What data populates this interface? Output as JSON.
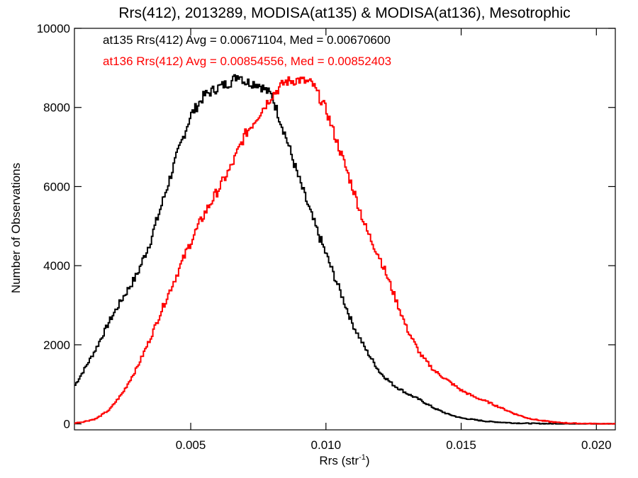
{
  "chart_data": {
    "type": "line",
    "title": "Rrs(412), 2013289, MODISA(at135) & MODISA(at136), Mesotrophic",
    "xlabel": "Rrs (str",
    "xlabel_sup": "-1",
    "xlabel_end": ")",
    "ylabel": "Number of Observations",
    "xlim": [
      0.0007,
      0.0207
    ],
    "ylim": [
      -150,
      10000
    ],
    "xticks": [
      0.005,
      0.01,
      0.015,
      0.02
    ],
    "xtick_labels": [
      "0.005",
      "0.010",
      "0.015",
      "0.020"
    ],
    "yticks": [
      0,
      2000,
      4000,
      6000,
      8000,
      10000
    ],
    "ytick_labels": [
      "0",
      "2000",
      "4000",
      "6000",
      "8000",
      "10000"
    ],
    "step": "histogram",
    "annotations": [
      {
        "text": "at135 Rrs(412) Avg = 0.00671104, Med = 0.00670600",
        "color": "#000000"
      },
      {
        "text": "at136 Rrs(412) Avg = 0.00854556, Med = 0.00852403",
        "color": "#ff0000"
      }
    ],
    "series": [
      {
        "color": "#000000",
        "x": [
          0.0007,
          0.001,
          0.0015,
          0.002,
          0.0025,
          0.003,
          0.0035,
          0.004,
          0.0045,
          0.005,
          0.0055,
          0.006,
          0.0065,
          0.0068,
          0.007,
          0.0075,
          0.008,
          0.0085,
          0.009,
          0.0095,
          0.01,
          0.0105,
          0.011,
          0.0115,
          0.012,
          0.0125,
          0.013,
          0.0135,
          0.014,
          0.0145,
          0.015,
          0.016,
          0.017,
          0.018,
          0.019,
          0.02,
          0.0207
        ],
        "y": [
          950,
          1300,
          1900,
          2600,
          3200,
          3750,
          4600,
          5700,
          6800,
          7800,
          8300,
          8500,
          8650,
          8850,
          8650,
          8600,
          8300,
          7300,
          6200,
          5200,
          4300,
          3400,
          2500,
          1850,
          1300,
          980,
          770,
          600,
          400,
          250,
          150,
          60,
          20,
          8,
          3,
          1,
          0
        ]
      },
      {
        "color": "#ff0000",
        "x": [
          0.0007,
          0.001,
          0.0015,
          0.002,
          0.0025,
          0.003,
          0.0035,
          0.004,
          0.0045,
          0.005,
          0.0055,
          0.006,
          0.0065,
          0.007,
          0.0075,
          0.008,
          0.0085,
          0.009,
          0.0095,
          0.01,
          0.0105,
          0.011,
          0.0115,
          0.012,
          0.0125,
          0.013,
          0.0135,
          0.014,
          0.0145,
          0.015,
          0.0155,
          0.016,
          0.0165,
          0.017,
          0.0175,
          0.018,
          0.0185,
          0.019,
          0.0195,
          0.02,
          0.0207
        ],
        "y": [
          20,
          50,
          130,
          360,
          800,
          1400,
          2150,
          3000,
          3800,
          4600,
          5300,
          5900,
          6500,
          7300,
          7800,
          8300,
          8650,
          8700,
          8600,
          7950,
          6950,
          5950,
          4900,
          4200,
          3300,
          2400,
          1750,
          1350,
          1100,
          850,
          680,
          550,
          400,
          250,
          140,
          80,
          40,
          20,
          10,
          5,
          0
        ]
      }
    ]
  }
}
